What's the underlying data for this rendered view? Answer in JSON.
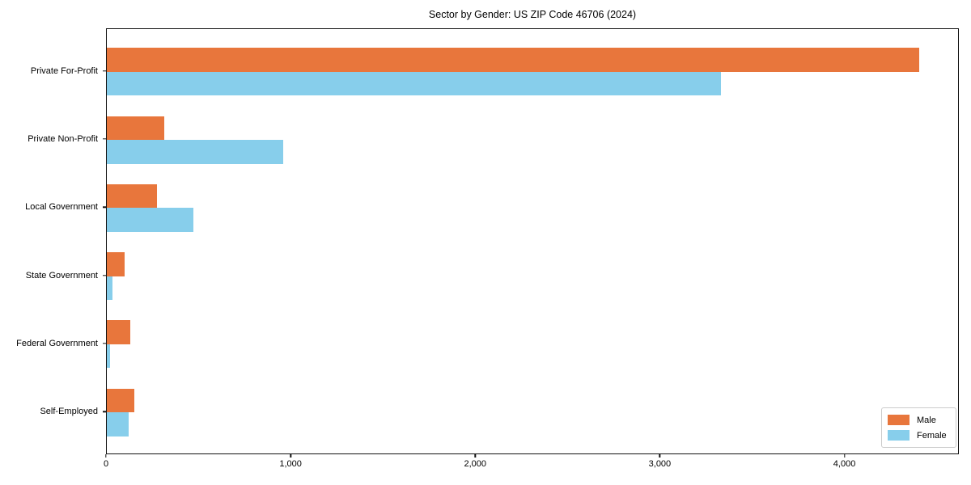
{
  "chart_data": {
    "type": "bar",
    "orientation": "horizontal",
    "title": "Sector by Gender: US ZIP Code 46706 (2024)",
    "categories": [
      "Private For-Profit",
      "Private Non-Profit",
      "Local Government",
      "State Government",
      "Federal Government",
      "Self-Employed"
    ],
    "series": [
      {
        "name": "Male",
        "color": "#e8763c",
        "values": [
          4400,
          310,
          270,
          95,
          125,
          150
        ]
      },
      {
        "name": "Female",
        "color": "#87ceeb",
        "values": [
          3325,
          955,
          470,
          32,
          17,
          120
        ]
      }
    ],
    "xlabel": "",
    "ylabel": "",
    "xlim": [
      0,
      4620
    ],
    "xticks": [
      {
        "value": 0,
        "label": "0"
      },
      {
        "value": 1000,
        "label": "1,000"
      },
      {
        "value": 2000,
        "label": "2,000"
      },
      {
        "value": 3000,
        "label": "3,000"
      },
      {
        "value": 4000,
        "label": "4,000"
      }
    ],
    "grid": false,
    "legend_position": "lower-right",
    "axis_color": "#111111"
  }
}
